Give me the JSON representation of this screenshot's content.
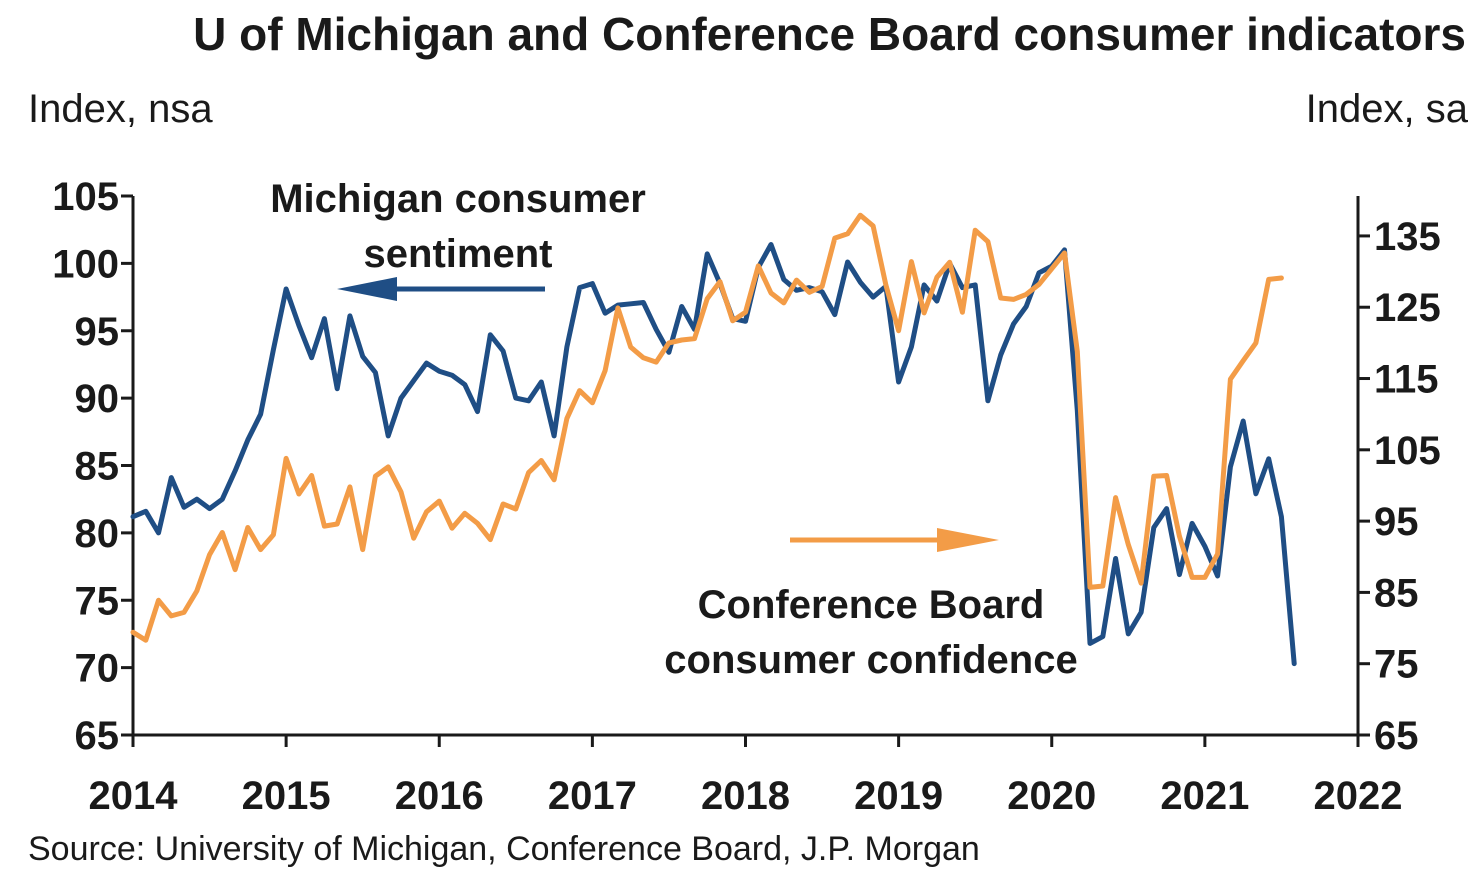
{
  "chart_data": {
    "type": "line",
    "title": "U of Michigan and Conference Board consumer indicators",
    "left_axis_label": "Index, nsa",
    "right_axis_label": "Index, sa",
    "source": "Source: University of Michigan, Conference Board, J.P. Morgan",
    "x_ticks": [
      "2014",
      "2015",
      "2016",
      "2017",
      "2018",
      "2019",
      "2020",
      "2021",
      "2022"
    ],
    "xlim": [
      2014,
      2022
    ],
    "left_ticks": [
      "105",
      "100",
      "95",
      "90",
      "85",
      "80",
      "75",
      "70",
      "65"
    ],
    "left_ylim": [
      65,
      105
    ],
    "right_ticks": [
      "135",
      "125",
      "115",
      "105",
      "95",
      "85",
      "75",
      "65"
    ],
    "right_ylim": [
      65,
      140.6
    ],
    "grid": false,
    "annotations": {
      "michigan": [
        "Michigan consumer",
        "sentiment"
      ],
      "conference": [
        "Conference Board",
        "consumer confidence"
      ]
    },
    "colors": {
      "michigan": "#1f4e85",
      "conference": "#f39c47",
      "axis": "#1a1a1a"
    },
    "series": [
      {
        "key": "michigan",
        "axis": "left",
        "start": "2014-01",
        "values": [
          81.2,
          81.6,
          80.0,
          84.1,
          81.9,
          82.5,
          81.8,
          82.5,
          84.6,
          86.9,
          88.8,
          93.6,
          98.1,
          95.4,
          93.0,
          95.9,
          90.7,
          96.1,
          93.1,
          91.9,
          87.2,
          90.0,
          91.3,
          92.6,
          92.0,
          91.7,
          91.0,
          89.0,
          94.7,
          93.5,
          90.0,
          89.8,
          91.2,
          87.2,
          93.8,
          98.2,
          98.5,
          96.3,
          96.9,
          97.0,
          97.1,
          95.1,
          93.4,
          96.8,
          95.1,
          100.7,
          98.5,
          95.9,
          95.7,
          99.7,
          101.4,
          98.8,
          98.0,
          98.2,
          97.9,
          96.2,
          100.1,
          98.6,
          97.5,
          98.3,
          91.2,
          93.8,
          98.4,
          97.2,
          100.0,
          98.2,
          98.4,
          89.8,
          93.2,
          95.5,
          96.8,
          99.3,
          99.8,
          101.0,
          89.1,
          71.8,
          72.3,
          78.1,
          72.5,
          74.1,
          80.4,
          81.8,
          76.9,
          80.7,
          79.0,
          76.8,
          84.9,
          88.3,
          82.9,
          85.5,
          81.2,
          70.3
        ]
      },
      {
        "key": "conference",
        "axis": "right",
        "start": "2014-01",
        "values": [
          79.4,
          78.3,
          83.9,
          81.7,
          82.2,
          85.2,
          90.3,
          93.4,
          88.2,
          94.1,
          91.0,
          93.1,
          103.8,
          98.8,
          101.4,
          94.3,
          94.6,
          99.8,
          91.0,
          101.3,
          102.6,
          99.1,
          92.6,
          96.3,
          97.8,
          94.0,
          96.1,
          94.7,
          92.4,
          97.4,
          96.7,
          101.8,
          103.5,
          100.8,
          109.4,
          113.3,
          111.6,
          116.1,
          124.9,
          119.4,
          117.9,
          117.3,
          120.0,
          120.4,
          120.6,
          126.2,
          128.6,
          123.1,
          124.3,
          130.8,
          127.0,
          125.6,
          128.8,
          127.1,
          127.9,
          134.7,
          135.3,
          137.9,
          136.4,
          128.1,
          121.7,
          131.4,
          124.2,
          129.2,
          131.3,
          124.3,
          135.8,
          134.2,
          126.3,
          126.1,
          126.8,
          128.2,
          130.4,
          132.6,
          118.8,
          85.7,
          85.9,
          98.3,
          91.7,
          86.3,
          101.3,
          101.4,
          92.9,
          87.1,
          87.1,
          90.4,
          114.9,
          117.5,
          120.0,
          128.9,
          129.1
        ]
      }
    ]
  }
}
